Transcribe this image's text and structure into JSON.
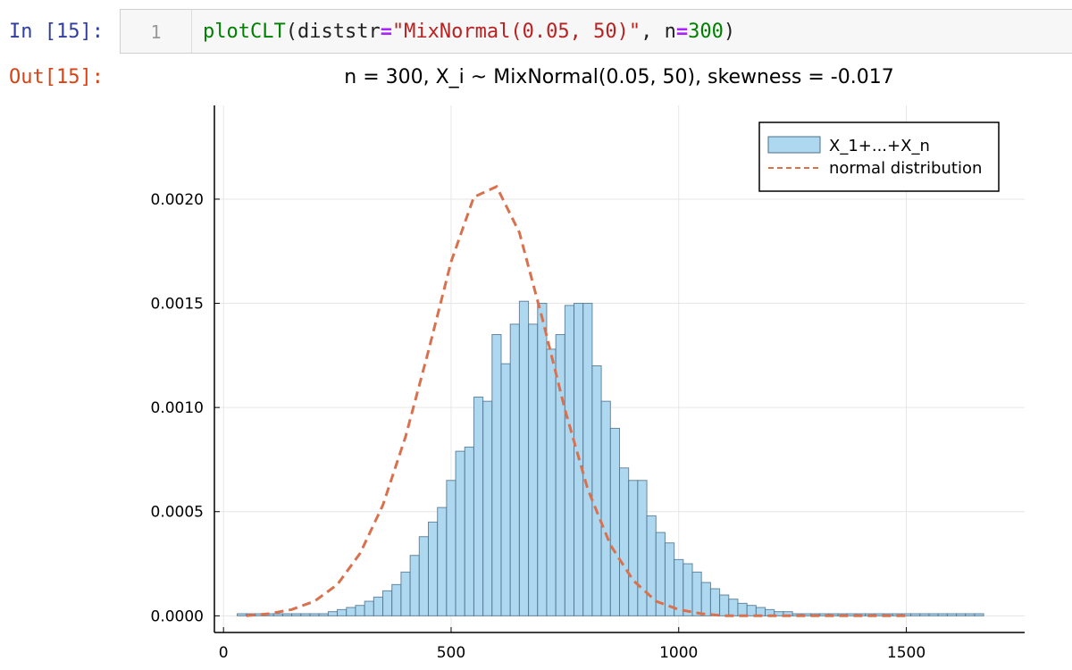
{
  "cell": {
    "in_prompt": "In [15]:",
    "out_prompt": "Out[15]:",
    "line_number": "1",
    "code_tokens": [
      {
        "text": "plotCLT",
        "kind": "fn"
      },
      {
        "text": "(",
        "kind": "name"
      },
      {
        "text": "diststr",
        "kind": "name"
      },
      {
        "text": "=",
        "kind": "op"
      },
      {
        "text": "\"MixNormal(0.05, 50)\"",
        "kind": "str"
      },
      {
        "text": ", ",
        "kind": "name"
      },
      {
        "text": "n",
        "kind": "name"
      },
      {
        "text": "=",
        "kind": "op"
      },
      {
        "text": "300",
        "kind": "num"
      },
      {
        "text": ")",
        "kind": "name"
      }
    ]
  },
  "chart_data": {
    "type": "bar",
    "title": "n = 300,  X_i ~ MixNormal(0.05, 50),  skewness = -0.017",
    "xlim": [
      -20,
      1760
    ],
    "ylim": [
      -8e-05,
      0.00245
    ],
    "xticks": [
      0,
      500,
      1000,
      1500
    ],
    "xtick_labels": [
      "0",
      "500",
      "1000",
      "1500"
    ],
    "yticks": [
      0,
      0.0005,
      0.001,
      0.0015,
      0.002
    ],
    "ytick_labels": [
      "0.0000",
      "0.0005",
      "0.0010",
      "0.0015",
      "0.0020"
    ],
    "grid": true,
    "legend_position": "top-right",
    "bin_start": 30,
    "bin_width": 20,
    "series": [
      {
        "name": "X_1+...+X_n",
        "kind": "histogram",
        "color": "#add8f0",
        "edge_color": "#4a6f8a",
        "values": [
          1e-05,
          1e-05,
          1e-05,
          1e-05,
          1e-05,
          1e-05,
          1e-05,
          1e-05,
          1e-05,
          1e-05,
          2e-05,
          3e-05,
          4e-05,
          5e-05,
          7e-05,
          9e-05,
          0.00012,
          0.00015,
          0.00021,
          0.00029,
          0.00038,
          0.00045,
          0.00052,
          0.00065,
          0.00079,
          0.00081,
          0.00105,
          0.00103,
          0.00135,
          0.00121,
          0.0014,
          0.00151,
          0.0014,
          0.0015,
          0.00128,
          0.00135,
          0.00149,
          0.0015,
          0.0015,
          0.0012,
          0.00103,
          0.0009,
          0.00071,
          0.00065,
          0.00065,
          0.00048,
          0.0004,
          0.00035,
          0.00027,
          0.00025,
          0.00021,
          0.00016,
          0.00013,
          0.0001,
          8e-05,
          6e-05,
          5e-05,
          4e-05,
          3e-05,
          2e-05,
          2e-05,
          1e-05,
          1e-05,
          1e-05,
          1e-05,
          1e-05,
          1e-05,
          1e-05,
          1e-05,
          1e-05,
          1e-05,
          1e-05,
          1e-05,
          1e-05,
          1e-05,
          1e-05,
          1e-05,
          1e-05,
          1e-05,
          1e-05,
          1e-05,
          1e-05
        ]
      },
      {
        "name": "normal distribution",
        "kind": "line",
        "style": "dashed",
        "color": "#d9714e",
        "x": [
          50,
          100,
          150,
          200,
          250,
          300,
          350,
          400,
          450,
          500,
          550,
          600,
          650,
          700,
          750,
          800,
          850,
          900,
          950,
          1000,
          1050,
          1100,
          1150,
          1200,
          1250,
          1300,
          1350,
          1400,
          1450,
          1500
        ],
        "values": [
          0.0,
          1e-05,
          3e-05,
          7e-05,
          0.00015,
          0.0003,
          0.00053,
          0.00086,
          0.00127,
          0.0017,
          0.00201,
          0.00206,
          0.00184,
          0.00143,
          0.00099,
          0.00061,
          0.00034,
          0.00017,
          7e-05,
          3e-05,
          1e-05,
          0.0,
          0.0,
          0.0,
          0.0,
          0.0,
          0.0,
          0.0,
          0.0,
          0.0
        ]
      }
    ]
  }
}
